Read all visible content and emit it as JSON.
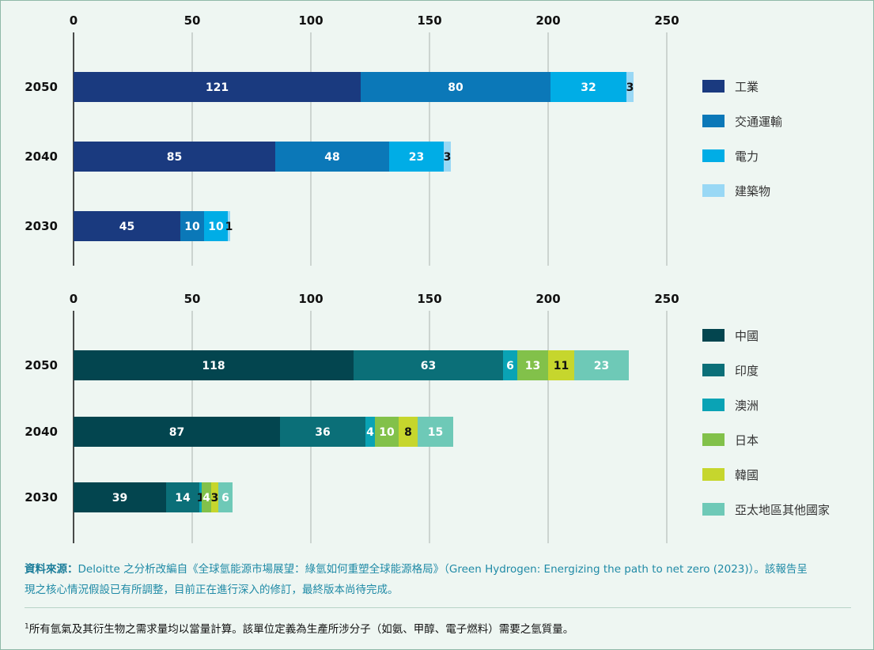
{
  "chart_data": [
    {
      "type": "bar",
      "orientation": "horizontal",
      "stacked": true,
      "categories": [
        "2050",
        "2040",
        "2030"
      ],
      "xlim": [
        0,
        250
      ],
      "xticks": [
        0,
        50,
        100,
        150,
        200,
        250
      ],
      "grid": true,
      "legend_position": "right",
      "series": [
        {
          "name": "工業",
          "color": "#1a3a7f",
          "values": [
            121,
            85,
            45
          ]
        },
        {
          "name": "交通運輸",
          "color": "#0b78b8",
          "values": [
            80,
            48,
            10
          ]
        },
        {
          "name": "電力",
          "color": "#00ade6",
          "values": [
            32,
            23,
            10
          ]
        },
        {
          "name": "建築物",
          "color": "#99d8f5",
          "values": [
            3,
            3,
            1
          ]
        }
      ]
    },
    {
      "type": "bar",
      "orientation": "horizontal",
      "stacked": true,
      "categories": [
        "2050",
        "2040",
        "2030"
      ],
      "xlim": [
        0,
        250
      ],
      "xticks": [
        0,
        50,
        100,
        150,
        200,
        250
      ],
      "grid": true,
      "legend_position": "right",
      "series": [
        {
          "name": "中國",
          "color": "#03454f",
          "values": [
            118,
            87,
            39
          ]
        },
        {
          "name": "印度",
          "color": "#0b6f78",
          "values": [
            63,
            36,
            14
          ]
        },
        {
          "name": "澳洲",
          "color": "#0aa3b5",
          "values": [
            6,
            4,
            1
          ]
        },
        {
          "name": "日本",
          "color": "#82c14a",
          "values": [
            13,
            10,
            4
          ]
        },
        {
          "name": "韓國",
          "color": "#c6d62d",
          "values": [
            11,
            8,
            3
          ]
        },
        {
          "name": "亞太地區其他國家",
          "color": "#6ec9b7",
          "values": [
            23,
            15,
            6
          ]
        }
      ]
    }
  ],
  "source": {
    "label": "資料來源：",
    "text": "Deloitte 之分析改編自《全球氫能源市場展望：綠氫如何重塑全球能源格局》（Green Hydrogen: Energizing the path to net zero (2023)）。該報告呈現之核心情況假設已有所調整，目前正在進行深入的修訂，最終版本尚待完成。"
  },
  "footnote": {
    "marker": "1",
    "text": "所有氫氣及其衍生物之需求量均以當量計算。該單位定義為生產所涉分子（如氨、甲醇、電子燃料）需要之氫質量。"
  }
}
